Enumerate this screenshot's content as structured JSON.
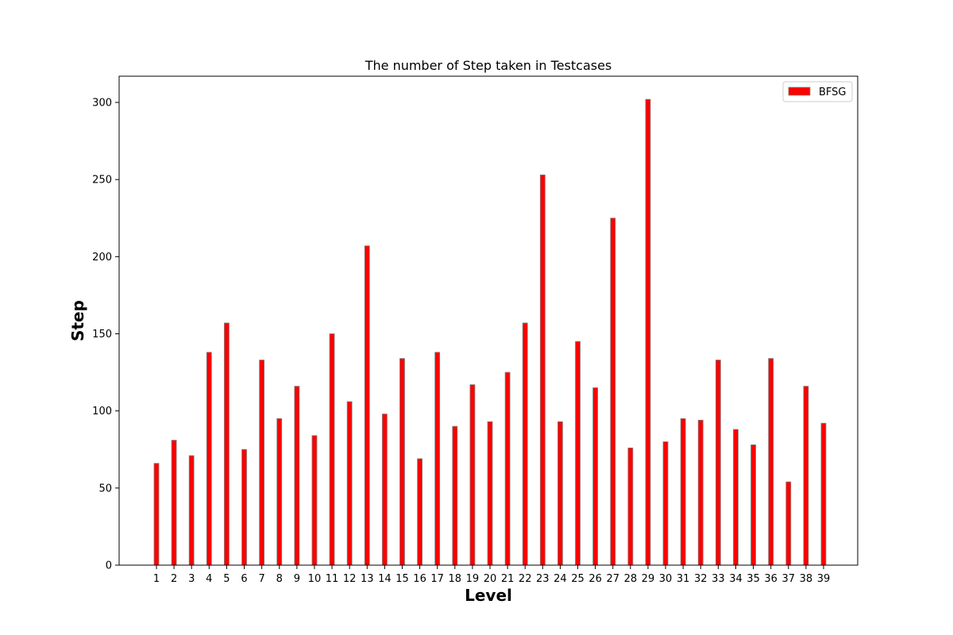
{
  "chart_data": {
    "type": "bar",
    "title": "The number of Step taken in  Testcases",
    "xlabel": "Level",
    "ylabel": "Step",
    "categories": [
      "1",
      "2",
      "3",
      "4",
      "5",
      "6",
      "7",
      "8",
      "9",
      "10",
      "11",
      "12",
      "13",
      "14",
      "15",
      "16",
      "17",
      "18",
      "19",
      "20",
      "21",
      "22",
      "23",
      "24",
      "25",
      "26",
      "27",
      "28",
      "29",
      "30",
      "31",
      "32",
      "33",
      "34",
      "35",
      "36",
      "37",
      "38",
      "39"
    ],
    "series": [
      {
        "name": "BFSG",
        "color": "#ff0000",
        "edgecolor": "#808080",
        "values": [
          66,
          81,
          71,
          138,
          157,
          75,
          133,
          95,
          116,
          84,
          150,
          106,
          207,
          98,
          134,
          69,
          138,
          90,
          117,
          93,
          125,
          157,
          253,
          93,
          145,
          115,
          225,
          76,
          302,
          80,
          95,
          94,
          133,
          88,
          78,
          134,
          54,
          116,
          92
        ]
      }
    ],
    "ylim": [
      0,
      317
    ],
    "yticks": [
      0,
      50,
      100,
      150,
      200,
      250,
      300
    ],
    "grid": false,
    "legend": "top-right"
  }
}
